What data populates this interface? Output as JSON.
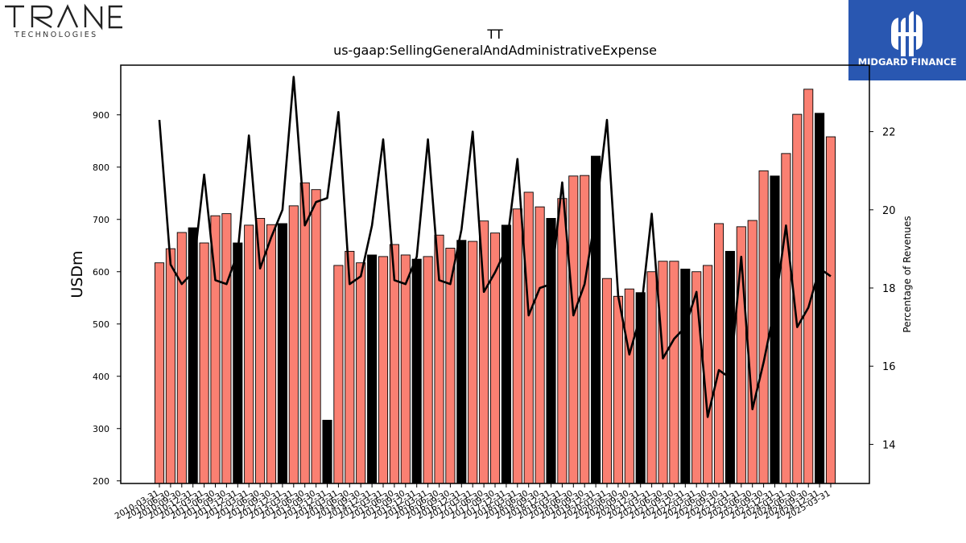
{
  "branding": {
    "left_logo_word": "TRANE",
    "left_logo_sub": "TECHNOLOGIES",
    "right_logo_text": "MIDGARD FINANCE",
    "right_logo_bg": "#2957b1",
    "left_logo_accent": "#7b3fd0"
  },
  "chart_data": {
    "type": "bar",
    "title": "TT",
    "subtitle": "us-gaap:SellingGeneralAndAdministrativeExpense",
    "ylabel": "USDm",
    "y2label": "Percentage of Revenues",
    "ylim": [
      195,
      995
    ],
    "y2lim": [
      13.0,
      23.7
    ],
    "yticks": [
      200,
      300,
      400,
      500,
      600,
      700,
      800,
      900
    ],
    "y2ticks": [
      14,
      16,
      18,
      20,
      22
    ],
    "bar_color_quarter": "#fa8072",
    "bar_color_fy": "#000000",
    "line_color": "#000000",
    "categories": [
      "2010-03-31",
      "2010-06-30",
      "2010-09-30",
      "2010-12-31",
      "2011-03-31",
      "2011-06-30",
      "2011-09-30",
      "2011-12-31",
      "2012-03-31",
      "2012-06-30",
      "2012-09-30",
      "2012-12-31",
      "2013-03-31",
      "2013-06-30",
      "2013-09-30",
      "2013-12-31",
      "2014-03-31",
      "2014-06-30",
      "2014-09-30",
      "2014-12-31",
      "2015-03-31",
      "2015-06-30",
      "2015-09-30",
      "2015-12-31",
      "2016-03-31",
      "2016-06-30",
      "2016-09-30",
      "2016-12-31",
      "2017-03-31",
      "2017-06-30",
      "2017-09-30",
      "2017-12-31",
      "2018-03-31",
      "2018-06-30",
      "2018-09-30",
      "2018-12-31",
      "2019-03-31",
      "2019-06-30",
      "2019-09-30",
      "2019-12-31",
      "2020-03-31",
      "2020-06-30",
      "2020-09-30",
      "2020-12-31",
      "2021-03-31",
      "2021-06-30",
      "2021-09-30",
      "2021-12-31",
      "2022-03-31",
      "2022-06-30",
      "2022-09-30",
      "2022-12-31",
      "2023-03-31",
      "2023-06-30",
      "2023-09-30",
      "2023-12-31",
      "2024-03-31",
      "2024-06-30",
      "2024-09-30",
      "2024-12-31",
      "2025-03-31"
    ],
    "tick_labels": [
      "2010-03-31",
      "2010-06-30",
      "2010-09-30",
      "2010-12-31",
      "2011-03-31",
      "2011-06-30",
      "2011-09-30",
      "2011-12-31",
      "2012-03-31",
      "2012-06-30",
      "2012-09-30",
      "2012-12-31",
      "2013-03-31",
      "2013-06-30",
      "2013-09-30",
      "2013-12-31",
      "2014-03-31",
      "2014-06-30",
      "2014-09-30",
      "2014-12-31",
      "2015-03-31",
      "2015-06-30",
      "2015-09-30",
      "2015-12-31",
      "2016-03-31",
      "2016-06-30",
      "2016-09-30",
      "2016-12-31",
      "2017-03-31",
      "2017-06-30",
      "2017-09-30",
      "2017-12-31",
      "2018-03-31",
      "2018-06-30",
      "2018-09-30",
      "2018-12-31",
      "2019-03-31",
      "2019-06-30",
      "2019-09-30",
      "2019-12-31",
      "2020-03-31",
      "2020-06-30",
      "2020-09-30",
      "2020-12-31",
      "2021-03-31",
      "2021-06-30",
      "2021-09-30",
      "2021-12-31",
      "2022-03-31",
      "2022-06-30",
      "2022-09-30",
      "2022-12-31",
      "2023-03-31",
      "2023-06-30",
      "2023-09-30",
      "2023-12-31",
      "2024-03-31",
      "2024-06-30",
      "2024-09-30",
      "2024-12-31",
      "2025-03-31"
    ],
    "values": [
      617,
      644,
      675,
      684,
      655,
      707,
      711,
      655,
      689,
      702,
      690,
      692,
      726,
      770,
      757,
      316,
      612,
      639,
      617,
      632,
      629,
      652,
      632,
      624,
      629,
      670,
      645,
      660,
      658,
      697,
      674,
      689,
      720,
      752,
      724,
      702,
      740,
      783,
      784,
      821,
      587,
      553,
      567,
      560,
      600,
      620,
      620,
      605,
      600,
      612,
      692,
      639,
      686,
      698,
      793,
      783,
      826,
      901,
      949,
      903,
      858
    ],
    "fy_flags": [
      0,
      0,
      0,
      1,
      0,
      0,
      0,
      1,
      0,
      0,
      0,
      1,
      0,
      0,
      0,
      1,
      0,
      0,
      0,
      1,
      0,
      0,
      0,
      1,
      0,
      0,
      0,
      1,
      0,
      0,
      0,
      1,
      0,
      0,
      0,
      1,
      0,
      0,
      0,
      1,
      0,
      0,
      0,
      1,
      0,
      0,
      0,
      1,
      0,
      0,
      0,
      1,
      0,
      0,
      0,
      1,
      0,
      0,
      0,
      1,
      0
    ],
    "pct_of_revenues": [
      22.3,
      18.6,
      18.1,
      18.4,
      20.9,
      18.2,
      18.1,
      18.9,
      21.9,
      18.5,
      19.3,
      20.0,
      23.4,
      19.6,
      20.2,
      20.3,
      22.5,
      18.1,
      18.3,
      19.6,
      21.8,
      18.2,
      18.1,
      18.8,
      21.8,
      18.2,
      18.1,
      19.5,
      22.0,
      17.9,
      18.4,
      19.0,
      21.3,
      17.3,
      18.0,
      18.1,
      20.7,
      17.3,
      18.1,
      19.9,
      22.3,
      17.8,
      16.3,
      17.3,
      19.9,
      16.2,
      16.7,
      17.0,
      17.9,
      14.7,
      15.9,
      15.7,
      18.8,
      14.9,
      16.1,
      17.5,
      19.6,
      17.0,
      17.5,
      18.5,
      18.3
    ]
  }
}
